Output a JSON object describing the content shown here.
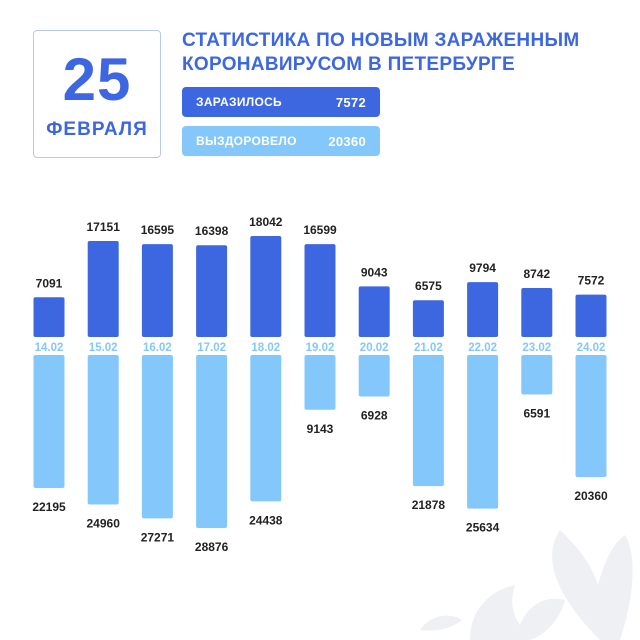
{
  "header": {
    "day": "25",
    "month": "ФЕВРАЛЯ",
    "title_line1": "СТАТИСТИКА ПО НОВЫМ ЗАРАЖЕННЫМ",
    "title_line2": "КОРОНАВИРУСОМ В ПЕТЕРБУРГЕ"
  },
  "legend": {
    "infected_label": "ЗАРАЗИЛОСЬ",
    "infected_value": "7572",
    "recovered_label": "ВЫЗДОРОВЕЛО",
    "recovered_value": "20360"
  },
  "colors": {
    "infected": "#3d67e0",
    "recovered": "#84c8fb",
    "date_label": "#84c8fb",
    "value_text": "#222222"
  },
  "chart_data": {
    "type": "bar",
    "categories": [
      "14.02",
      "15.02",
      "16.02",
      "17.02",
      "18.02",
      "19.02",
      "20.02",
      "21.02",
      "22.02",
      "23.02",
      "24.02"
    ],
    "series": [
      {
        "name": "ЗАРАЗИЛОСЬ",
        "values": [
          7091,
          17151,
          16595,
          16398,
          18042,
          16599,
          9043,
          6575,
          9794,
          8742,
          7572
        ]
      },
      {
        "name": "ВЫЗДОРОВЕЛО",
        "values": [
          22195,
          24960,
          27271,
          28876,
          24438,
          9143,
          6928,
          21878,
          25634,
          6591,
          20360
        ]
      }
    ]
  }
}
